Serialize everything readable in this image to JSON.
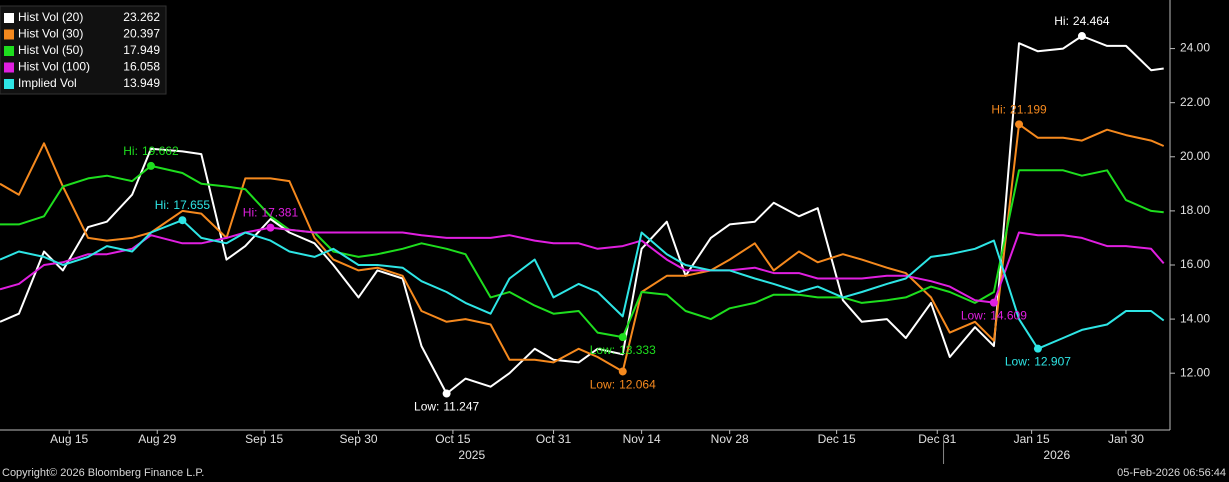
{
  "chart_data": {
    "type": "line",
    "x": [
      "2025-08-04",
      "2025-08-07",
      "2025-08-11",
      "2025-08-14",
      "2025-08-18",
      "2025-08-21",
      "2025-08-25",
      "2025-08-28",
      "2025-09-02",
      "2025-09-05",
      "2025-09-09",
      "2025-09-12",
      "2025-09-16",
      "2025-09-19",
      "2025-09-23",
      "2025-09-26",
      "2025-09-30",
      "2025-10-03",
      "2025-10-07",
      "2025-10-10",
      "2025-10-14",
      "2025-10-17",
      "2025-10-21",
      "2025-10-24",
      "2025-10-28",
      "2025-10-31",
      "2025-11-04",
      "2025-11-07",
      "2025-11-11",
      "2025-11-14",
      "2025-11-18",
      "2025-11-21",
      "2025-11-25",
      "2025-11-28",
      "2025-12-02",
      "2025-12-05",
      "2025-12-09",
      "2025-12-12",
      "2025-12-16",
      "2025-12-19",
      "2025-12-23",
      "2025-12-26",
      "2025-12-30",
      "2026-01-02",
      "2026-01-06",
      "2026-01-09",
      "2026-01-13",
      "2026-01-16",
      "2026-01-20",
      "2026-01-23",
      "2026-01-27",
      "2026-01-30",
      "2026-02-03",
      "2026-02-05"
    ],
    "xlim": [
      "2025-08-04",
      "2026-02-06"
    ],
    "xticks": [
      {
        "value": "2025-08-15",
        "label": "Aug 15"
      },
      {
        "value": "2025-08-29",
        "label": "Aug 29"
      },
      {
        "value": "2025-09-15",
        "label": "Sep 15"
      },
      {
        "value": "2025-09-30",
        "label": "Sep 30"
      },
      {
        "value": "2025-10-15",
        "label": "Oct 15"
      },
      {
        "value": "2025-10-31",
        "label": "Oct 31"
      },
      {
        "value": "2025-11-14",
        "label": "Nov 14"
      },
      {
        "value": "2025-11-28",
        "label": "Nov 28"
      },
      {
        "value": "2025-12-15",
        "label": "Dec 15"
      },
      {
        "value": "2025-12-31",
        "label": "Dec 31"
      },
      {
        "value": "2026-01-15",
        "label": "Jan 15"
      },
      {
        "value": "2026-01-30",
        "label": "Jan 30"
      }
    ],
    "years": [
      "2025",
      "2026"
    ],
    "ylim": [
      9.9,
      25.5
    ],
    "yticks": [
      {
        "value": 12,
        "label": "12.00"
      },
      {
        "value": 14,
        "label": "14.00"
      },
      {
        "value": 16,
        "label": "16.00"
      },
      {
        "value": 18,
        "label": "18.00"
      },
      {
        "value": 20,
        "label": "20.00"
      },
      {
        "value": 22,
        "label": "22.00"
      },
      {
        "value": 24,
        "label": "24.00"
      }
    ],
    "hi_label": "Hi:",
    "low_label": "Low:",
    "legend": "top-left",
    "series": [
      {
        "name": "Hist Vol (20)",
        "color": "#ffffff",
        "high": 24.464,
        "low": 11.247,
        "values": [
          13.9,
          14.2,
          16.5,
          15.8,
          17.4,
          17.6,
          18.6,
          20.3,
          20.2,
          20.1,
          16.2,
          16.7,
          17.7,
          17.2,
          16.8,
          16.0,
          14.8,
          15.8,
          15.5,
          13.0,
          11.247,
          11.8,
          11.5,
          12.0,
          12.9,
          12.5,
          12.4,
          12.9,
          12.7,
          16.6,
          17.6,
          15.6,
          17.0,
          17.5,
          17.6,
          18.3,
          17.8,
          18.1,
          14.7,
          13.9,
          14.0,
          13.3,
          14.6,
          12.6,
          13.7,
          13.0,
          24.2,
          23.9,
          24.0,
          24.464,
          24.1,
          24.1,
          23.2,
          23.262
        ]
      },
      {
        "name": "Hist Vol (30)",
        "color": "#f5891e",
        "high": 21.199,
        "low": 12.064,
        "values": [
          19.0,
          18.6,
          20.5,
          18.9,
          17.0,
          16.9,
          17.0,
          17.2,
          18.0,
          17.9,
          17.0,
          19.2,
          19.2,
          19.1,
          17.0,
          16.2,
          15.8,
          15.9,
          15.6,
          14.3,
          13.9,
          14.0,
          13.8,
          12.5,
          12.5,
          12.4,
          12.9,
          12.6,
          12.064,
          15.0,
          15.6,
          15.6,
          15.8,
          16.2,
          16.8,
          15.8,
          16.5,
          16.1,
          16.4,
          16.2,
          15.9,
          15.7,
          14.8,
          13.5,
          13.9,
          13.2,
          21.199,
          20.7,
          20.7,
          20.6,
          21.0,
          20.8,
          20.6,
          20.397
        ]
      },
      {
        "name": "Hist Vol (50)",
        "color": "#1ede1e",
        "high": 19.662,
        "low": 13.333,
        "values": [
          17.5,
          17.5,
          17.8,
          18.9,
          19.2,
          19.3,
          19.1,
          19.662,
          19.4,
          19.0,
          18.9,
          18.8,
          17.8,
          17.3,
          17.2,
          16.5,
          16.3,
          16.4,
          16.6,
          16.8,
          16.6,
          16.4,
          14.8,
          15.0,
          14.5,
          14.2,
          14.3,
          13.5,
          13.333,
          15.0,
          14.9,
          14.3,
          14.0,
          14.4,
          14.6,
          14.9,
          14.9,
          14.8,
          14.8,
          14.6,
          14.7,
          14.8,
          15.2,
          15.0,
          14.6,
          15.0,
          19.5,
          19.5,
          19.5,
          19.3,
          19.5,
          18.4,
          18.0,
          17.949
        ]
      },
      {
        "name": "Hist Vol (100)",
        "color": "#e01fe0",
        "high": 17.381,
        "low": 14.609,
        "values": [
          15.1,
          15.3,
          16.0,
          16.1,
          16.4,
          16.4,
          16.6,
          17.1,
          16.8,
          16.8,
          17.0,
          17.2,
          17.381,
          17.3,
          17.2,
          17.2,
          17.2,
          17.2,
          17.2,
          17.1,
          17.0,
          17.0,
          17.0,
          17.1,
          16.9,
          16.8,
          16.8,
          16.6,
          16.7,
          16.9,
          16.2,
          15.8,
          15.8,
          15.8,
          15.9,
          15.7,
          15.7,
          15.5,
          15.5,
          15.5,
          15.6,
          15.6,
          15.4,
          15.2,
          14.7,
          14.609,
          17.2,
          17.1,
          17.1,
          17.0,
          16.7,
          16.7,
          16.6,
          16.058
        ]
      },
      {
        "name": "Implied Vol",
        "color": "#2ee5e5",
        "high": 17.655,
        "low": 12.907,
        "values": [
          16.2,
          16.5,
          16.3,
          16.0,
          16.3,
          16.7,
          16.5,
          17.2,
          17.655,
          17.0,
          16.8,
          17.2,
          16.9,
          16.5,
          16.3,
          16.6,
          16.0,
          16.0,
          15.9,
          15.4,
          15.0,
          14.6,
          14.2,
          15.5,
          16.2,
          14.8,
          15.3,
          15.0,
          14.1,
          17.2,
          16.4,
          16.0,
          15.8,
          15.8,
          15.5,
          15.3,
          15.0,
          15.2,
          14.8,
          15.0,
          15.3,
          15.5,
          16.3,
          16.4,
          16.6,
          16.9,
          14.0,
          12.907,
          13.3,
          13.6,
          13.8,
          14.3,
          14.3,
          13.949
        ]
      }
    ],
    "footer_left": "Copyright© 2026 Bloomberg Finance L.P.",
    "footer_right": "05-Feb-2026 06:56:44"
  }
}
